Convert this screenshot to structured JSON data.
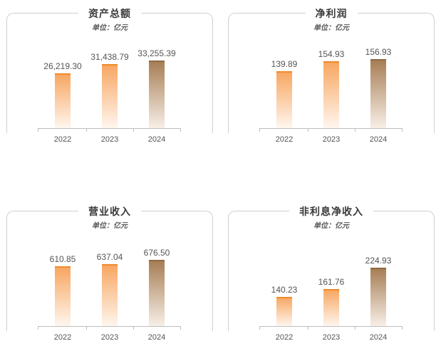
{
  "colors": {
    "bar_light_top": "#F7A55F",
    "bar_light_bottom": "#FFF6EE",
    "bar_dark_top": "#A67C52",
    "bar_dark_bottom": "#F7EFE7",
    "axis": "#bdbdbd",
    "label": "#555555"
  },
  "chart_data": [
    {
      "type": "bar",
      "title": "资产总额",
      "unit_label": "单位：亿元",
      "categories": [
        "2022",
        "2023",
        "2024"
      ],
      "values": [
        26219.3,
        31438.79,
        33255.39
      ],
      "value_labels": [
        "26,219.30",
        "31,438.79",
        "33,255.39"
      ],
      "highlight_index": 2
    },
    {
      "type": "bar",
      "title": "净利润",
      "unit_label": "单位：亿元",
      "categories": [
        "2022",
        "2023",
        "2024"
      ],
      "values": [
        139.89,
        154.93,
        156.93
      ],
      "value_labels": [
        "139.89",
        "154.93",
        "156.93"
      ],
      "highlight_index": 2
    },
    {
      "type": "bar",
      "title": "营业收入",
      "unit_label": "单位：亿元",
      "categories": [
        "2022",
        "2023",
        "2024"
      ],
      "values": [
        610.85,
        637.04,
        676.5
      ],
      "value_labels": [
        "610.85",
        "637.04",
        "676.50"
      ],
      "highlight_index": 2
    },
    {
      "type": "bar",
      "title": "非利息净收入",
      "unit_label": "单位：亿元",
      "categories": [
        "2022",
        "2023",
        "2024"
      ],
      "values": [
        140.23,
        161.76,
        224.93
      ],
      "value_labels": [
        "140.23",
        "161.76",
        "224.93"
      ],
      "highlight_index": 2
    }
  ]
}
